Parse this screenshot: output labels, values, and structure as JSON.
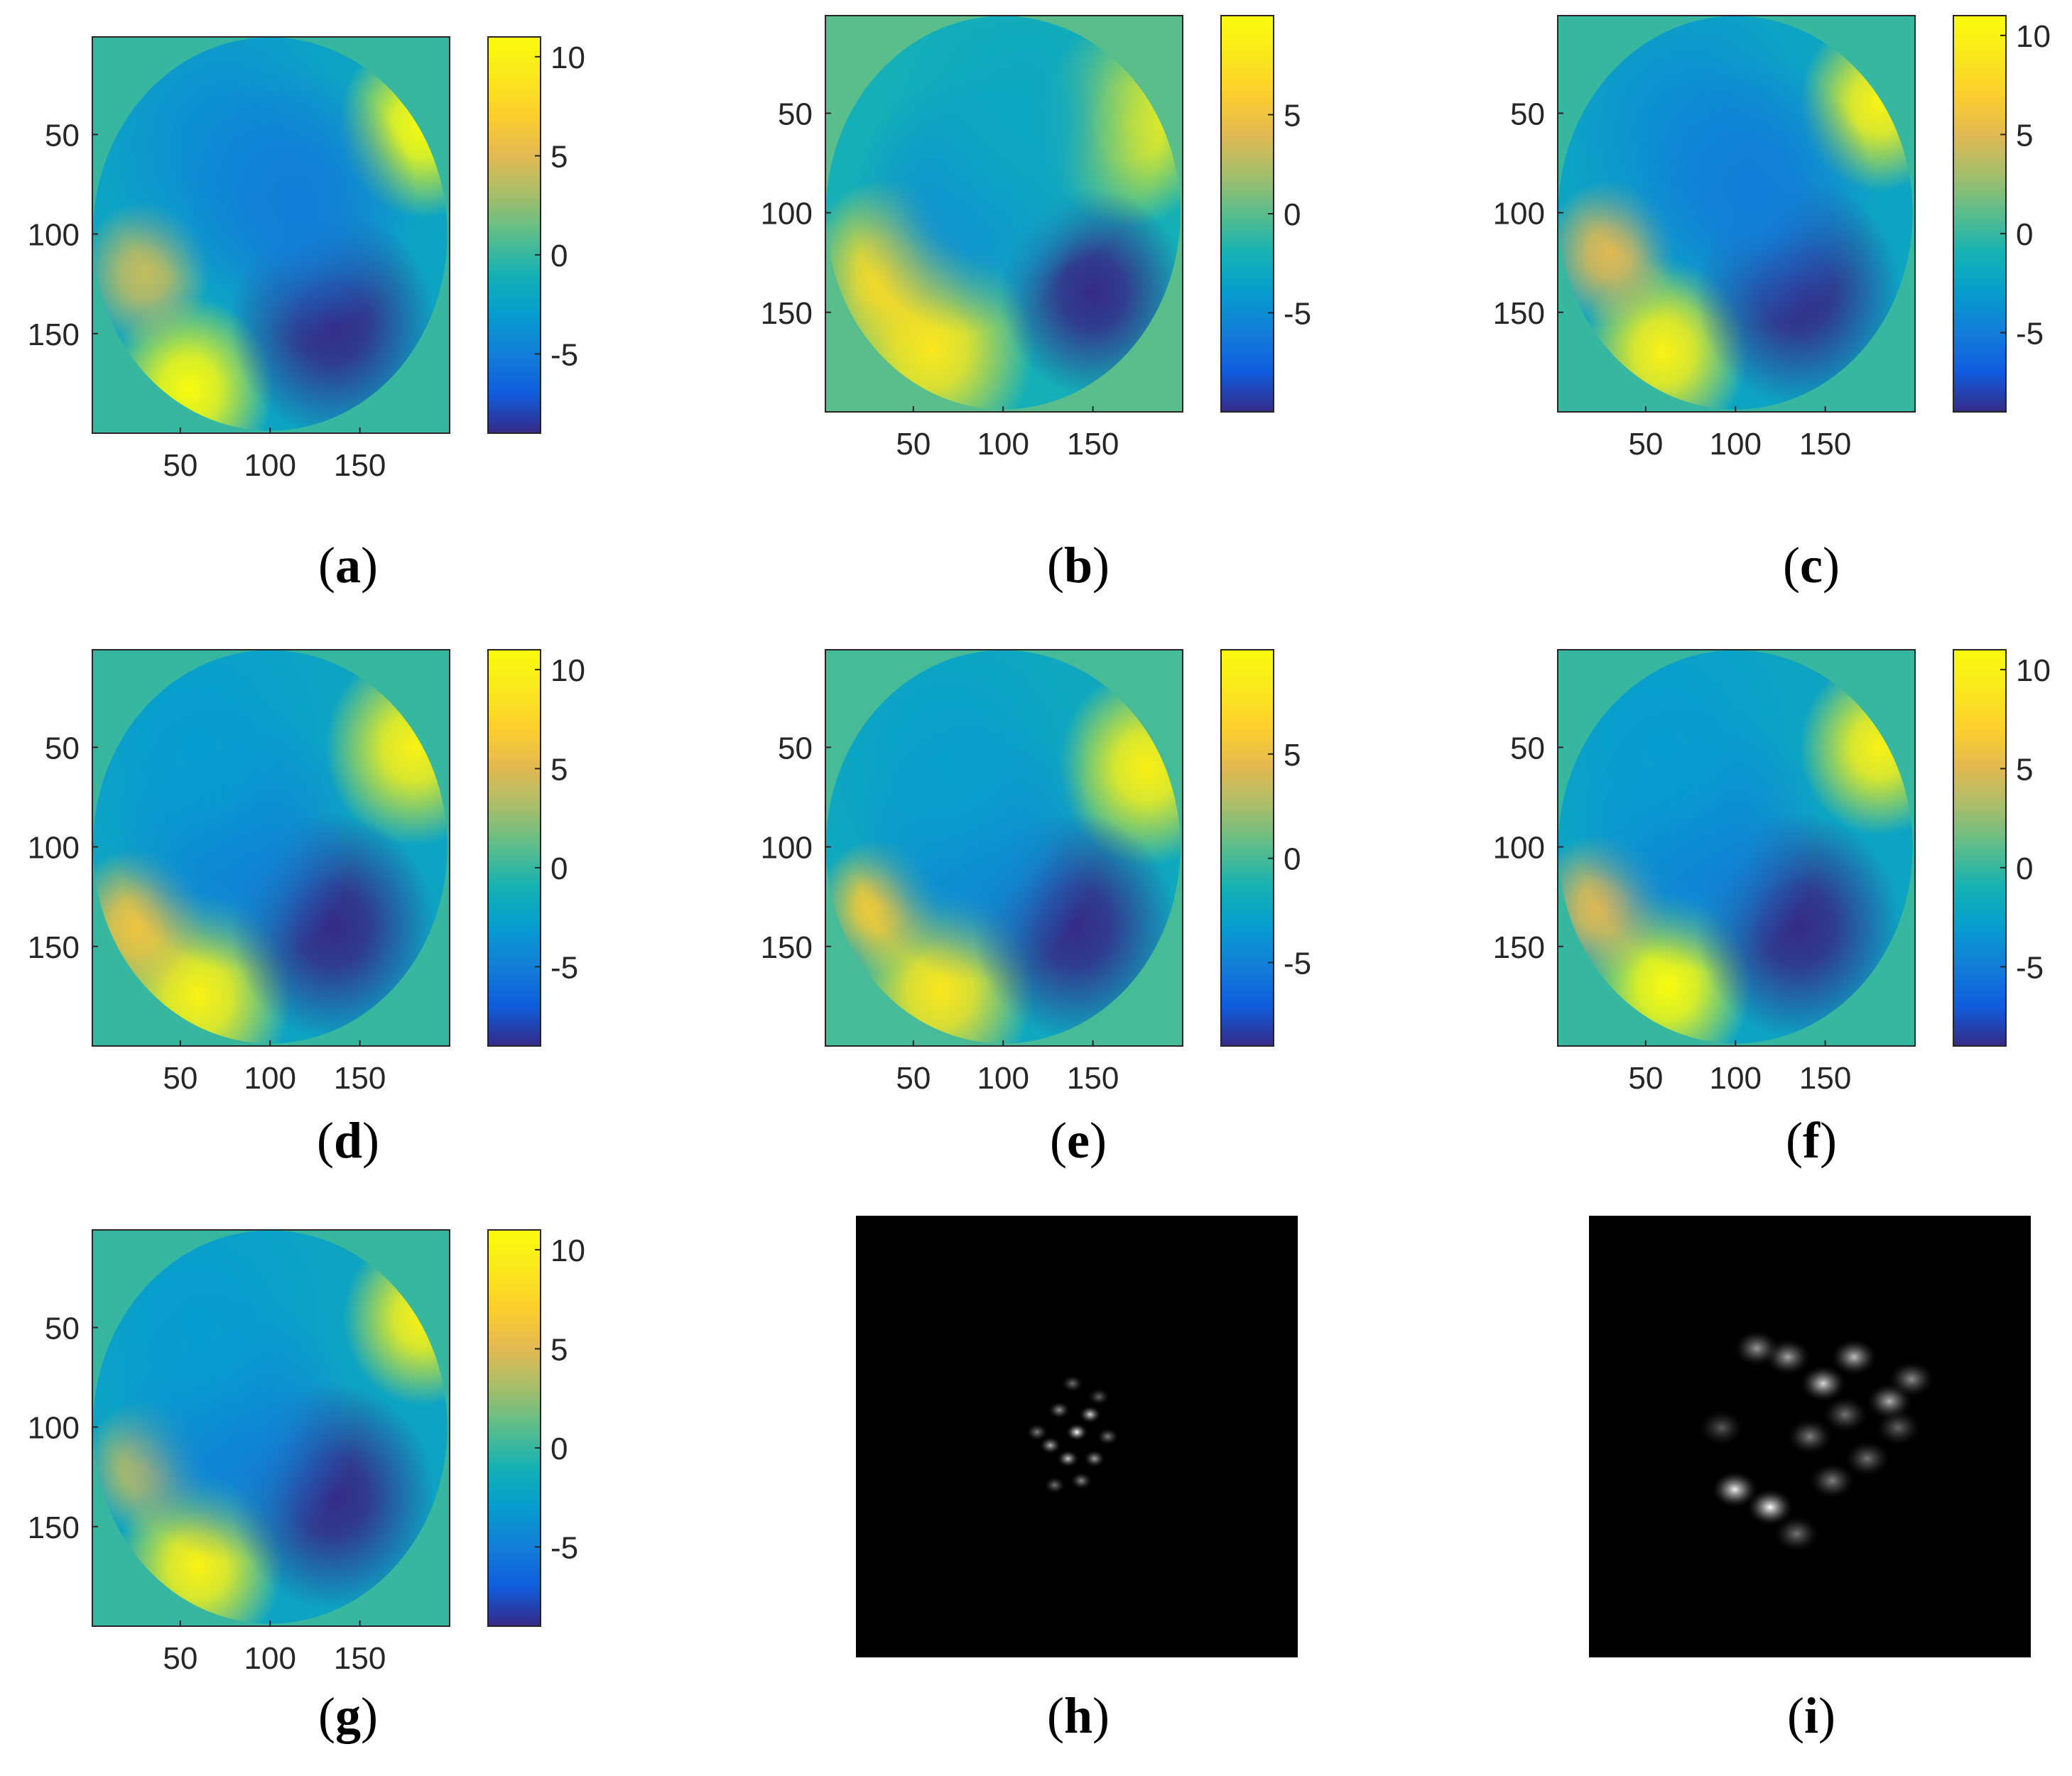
{
  "chart_data": [
    {
      "panel": "a",
      "type": "heatmap",
      "x_ticks": [
        50,
        100,
        150
      ],
      "y_ticks": [
        50,
        100,
        150
      ],
      "xlim": [
        1,
        200
      ],
      "ylim": [
        1,
        200
      ],
      "y_reversed": true,
      "colorbar": {
        "min": -9,
        "max": 11,
        "ticks": [
          -5,
          0,
          5,
          10
        ],
        "colormap": "parula"
      },
      "features": [
        {
          "x": 185,
          "y": 45,
          "sigma": 18,
          "value": 11
        },
        {
          "x": 55,
          "y": 178,
          "sigma": 18,
          "value": 11
        },
        {
          "x": 30,
          "y": 120,
          "sigma": 14,
          "value": 4
        },
        {
          "x": 135,
          "y": 145,
          "sigma": 22,
          "value": -9
        },
        {
          "x": 75,
          "y": 55,
          "sigma": 28,
          "value": -4
        },
        {
          "x": 115,
          "y": 85,
          "sigma": 26,
          "value": -5
        }
      ]
    },
    {
      "panel": "b",
      "type": "heatmap",
      "x_ticks": [
        50,
        100,
        150
      ],
      "y_ticks": [
        50,
        100,
        150
      ],
      "xlim": [
        1,
        200
      ],
      "ylim": [
        1,
        200
      ],
      "y_reversed": true,
      "colorbar": {
        "min": -10,
        "max": 10,
        "ticks": [
          -5,
          0,
          5
        ],
        "colormap": "parula"
      },
      "features": [
        {
          "x": 170,
          "y": 55,
          "sigma": 20,
          "value": 9
        },
        {
          "x": 60,
          "y": 168,
          "sigma": 22,
          "value": 8
        },
        {
          "x": 35,
          "y": 130,
          "sigma": 18,
          "value": 7
        },
        {
          "x": 150,
          "y": 140,
          "sigma": 20,
          "value": -10
        },
        {
          "x": 80,
          "y": 95,
          "sigma": 25,
          "value": -5
        },
        {
          "x": 110,
          "y": 55,
          "sigma": 30,
          "value": -3
        }
      ]
    },
    {
      "panel": "c",
      "type": "heatmap",
      "x_ticks": [
        50,
        100,
        150
      ],
      "y_ticks": [
        50,
        100,
        150
      ],
      "xlim": [
        1,
        200
      ],
      "ylim": [
        1,
        200
      ],
      "y_reversed": true,
      "colorbar": {
        "min": -9,
        "max": 11,
        "ticks": [
          -5,
          0,
          5,
          10
        ],
        "colormap": "parula"
      },
      "features": [
        {
          "x": 180,
          "y": 45,
          "sigma": 17,
          "value": 10
        },
        {
          "x": 60,
          "y": 170,
          "sigma": 18,
          "value": 10
        },
        {
          "x": 30,
          "y": 120,
          "sigma": 14,
          "value": 5
        },
        {
          "x": 135,
          "y": 140,
          "sigma": 22,
          "value": -9
        },
        {
          "x": 75,
          "y": 60,
          "sigma": 28,
          "value": -4
        },
        {
          "x": 110,
          "y": 90,
          "sigma": 26,
          "value": -5
        }
      ]
    },
    {
      "panel": "d",
      "type": "heatmap",
      "x_ticks": [
        50,
        100,
        150
      ],
      "y_ticks": [
        50,
        100,
        150
      ],
      "xlim": [
        1,
        200
      ],
      "ylim": [
        1,
        200
      ],
      "y_reversed": true,
      "colorbar": {
        "min": -9,
        "max": 11,
        "ticks": [
          -5,
          0,
          5,
          10
        ],
        "colormap": "parula"
      },
      "features": [
        {
          "x": 180,
          "y": 50,
          "sigma": 19,
          "value": 10
        },
        {
          "x": 60,
          "y": 175,
          "sigma": 20,
          "value": 10
        },
        {
          "x": 25,
          "y": 140,
          "sigma": 15,
          "value": 6
        },
        {
          "x": 135,
          "y": 140,
          "sigma": 22,
          "value": -9
        },
        {
          "x": 80,
          "y": 95,
          "sigma": 26,
          "value": -5
        },
        {
          "x": 60,
          "y": 50,
          "sigma": 30,
          "value": -3
        }
      ]
    },
    {
      "panel": "e",
      "type": "heatmap",
      "x_ticks": [
        50,
        100,
        150
      ],
      "y_ticks": [
        50,
        100,
        150
      ],
      "xlim": [
        1,
        200
      ],
      "ylim": [
        1,
        200
      ],
      "y_reversed": true,
      "colorbar": {
        "min": -9,
        "max": 10,
        "ticks": [
          -5,
          0,
          5
        ],
        "colormap": "parula"
      },
      "features": [
        {
          "x": 180,
          "y": 60,
          "sigma": 19,
          "value": 9
        },
        {
          "x": 65,
          "y": 172,
          "sigma": 20,
          "value": 8
        },
        {
          "x": 30,
          "y": 130,
          "sigma": 13,
          "value": 6
        },
        {
          "x": 140,
          "y": 140,
          "sigma": 22,
          "value": -9
        },
        {
          "x": 85,
          "y": 100,
          "sigma": 26,
          "value": -5
        },
        {
          "x": 70,
          "y": 60,
          "sigma": 30,
          "value": -3
        }
      ]
    },
    {
      "panel": "f",
      "type": "heatmap",
      "x_ticks": [
        50,
        100,
        150
      ],
      "y_ticks": [
        50,
        100,
        150
      ],
      "xlim": [
        1,
        200
      ],
      "ylim": [
        1,
        200
      ],
      "y_reversed": true,
      "colorbar": {
        "min": -9,
        "max": 11,
        "ticks": [
          -5,
          0,
          5,
          10
        ],
        "colormap": "parula"
      },
      "features": [
        {
          "x": 180,
          "y": 50,
          "sigma": 17,
          "value": 10
        },
        {
          "x": 62,
          "y": 170,
          "sigma": 18,
          "value": 11
        },
        {
          "x": 25,
          "y": 130,
          "sigma": 14,
          "value": 5
        },
        {
          "x": 135,
          "y": 140,
          "sigma": 22,
          "value": -9
        },
        {
          "x": 80,
          "y": 95,
          "sigma": 26,
          "value": -5
        },
        {
          "x": 60,
          "y": 50,
          "sigma": 30,
          "value": -3
        }
      ]
    },
    {
      "panel": "g",
      "type": "heatmap",
      "x_ticks": [
        50,
        100,
        150
      ],
      "y_ticks": [
        50,
        100,
        150
      ],
      "xlim": [
        1,
        200
      ],
      "ylim": [
        1,
        200
      ],
      "y_reversed": true,
      "colorbar": {
        "min": -9,
        "max": 11,
        "ticks": [
          -5,
          0,
          5,
          10
        ],
        "colormap": "parula"
      },
      "features": [
        {
          "x": 185,
          "y": 45,
          "sigma": 17,
          "value": 10
        },
        {
          "x": 60,
          "y": 170,
          "sigma": 18,
          "value": 10
        },
        {
          "x": 30,
          "y": 120,
          "sigma": 13,
          "value": 4
        },
        {
          "x": 135,
          "y": 135,
          "sigma": 22,
          "value": -9
        },
        {
          "x": 80,
          "y": 100,
          "sigma": 26,
          "value": -5
        },
        {
          "x": 60,
          "y": 50,
          "sigma": 30,
          "value": -3
        }
      ]
    },
    {
      "panel": "h",
      "type": "heatmap",
      "colormap": "gray",
      "spots": [
        {
          "x": 0.5,
          "y": 0.49,
          "i": 1.0
        },
        {
          "x": 0.53,
          "y": 0.45,
          "i": 0.85
        },
        {
          "x": 0.48,
          "y": 0.55,
          "i": 0.8
        },
        {
          "x": 0.44,
          "y": 0.52,
          "i": 0.7
        },
        {
          "x": 0.54,
          "y": 0.55,
          "i": 0.65
        },
        {
          "x": 0.46,
          "y": 0.44,
          "i": 0.6
        },
        {
          "x": 0.51,
          "y": 0.6,
          "i": 0.55
        },
        {
          "x": 0.41,
          "y": 0.49,
          "i": 0.5
        },
        {
          "x": 0.57,
          "y": 0.5,
          "i": 0.5
        },
        {
          "x": 0.49,
          "y": 0.38,
          "i": 0.45
        },
        {
          "x": 0.45,
          "y": 0.61,
          "i": 0.45
        },
        {
          "x": 0.55,
          "y": 0.41,
          "i": 0.4
        }
      ]
    },
    {
      "panel": "i",
      "type": "heatmap",
      "colormap": "gray",
      "spots": [
        {
          "x": 0.41,
          "y": 0.66,
          "i": 1.0
        },
        {
          "x": 0.33,
          "y": 0.62,
          "i": 0.95
        },
        {
          "x": 0.53,
          "y": 0.38,
          "i": 0.85
        },
        {
          "x": 0.6,
          "y": 0.32,
          "i": 0.75
        },
        {
          "x": 0.68,
          "y": 0.42,
          "i": 0.7
        },
        {
          "x": 0.45,
          "y": 0.32,
          "i": 0.65
        },
        {
          "x": 0.73,
          "y": 0.37,
          "i": 0.55
        },
        {
          "x": 0.38,
          "y": 0.3,
          "i": 0.6
        },
        {
          "x": 0.5,
          "y": 0.5,
          "i": 0.5
        },
        {
          "x": 0.63,
          "y": 0.55,
          "i": 0.45
        },
        {
          "x": 0.55,
          "y": 0.6,
          "i": 0.5
        },
        {
          "x": 0.47,
          "y": 0.72,
          "i": 0.45
        },
        {
          "x": 0.7,
          "y": 0.48,
          "i": 0.4
        },
        {
          "x": 0.3,
          "y": 0.48,
          "i": 0.35
        },
        {
          "x": 0.58,
          "y": 0.45,
          "i": 0.45
        }
      ]
    }
  ],
  "captions": [
    "(a)",
    "(b)",
    "(c)",
    "(d)",
    "(e)",
    "(f)",
    "(g)",
    "(h)",
    "(i)"
  ],
  "caption_letters": [
    "a",
    "b",
    "c",
    "d",
    "e",
    "f",
    "g",
    "h",
    "i"
  ],
  "colors": {
    "background": "#ffffff",
    "tick_text": "#262626",
    "axis_line": "#262626"
  }
}
